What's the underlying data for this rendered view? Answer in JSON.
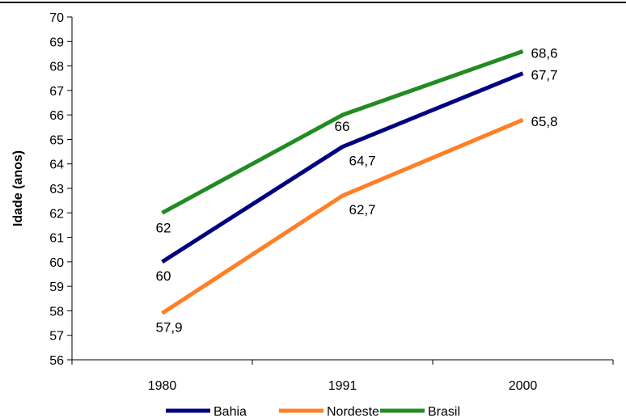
{
  "chart_data": {
    "type": "line",
    "title": "",
    "xlabel": "",
    "ylabel": "Idade (anos)",
    "ylim": [
      56,
      70
    ],
    "yticks": [
      56,
      57,
      58,
      59,
      60,
      61,
      62,
      63,
      64,
      65,
      66,
      67,
      68,
      69,
      70
    ],
    "categories": [
      "1980",
      "1991",
      "2000"
    ],
    "grid": false,
    "legend_position": "bottom",
    "series": [
      {
        "name": "Bahia",
        "values": [
          60,
          64.7,
          67.7
        ],
        "labels": [
          "60",
          "64,7",
          "67,7"
        ],
        "color": "#000080"
      },
      {
        "name": "Nordeste",
        "values": [
          57.9,
          62.7,
          65.8
        ],
        "labels": [
          "57,9",
          "62,7",
          "65,8"
        ],
        "color": "#FF7F27"
      },
      {
        "name": "Brasil",
        "values": [
          62,
          66,
          68.6
        ],
        "labels": [
          "62",
          "66",
          "68,6"
        ],
        "color": "#228B22"
      }
    ]
  }
}
